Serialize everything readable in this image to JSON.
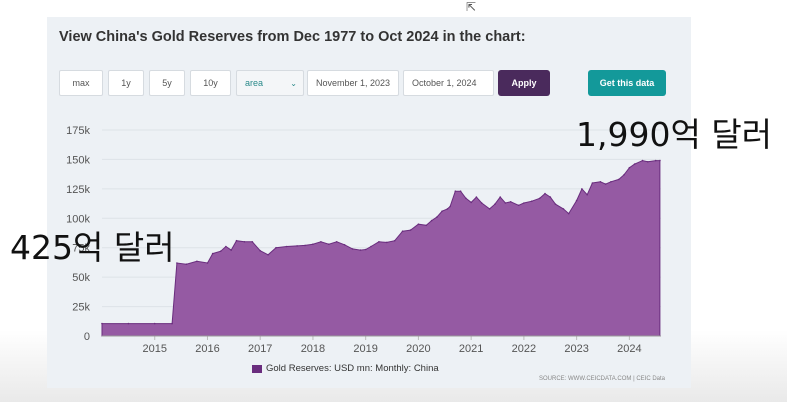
{
  "title": "View China's Gold Reserves from Dec 1977 to Oct 2024 in the chart:",
  "controls": {
    "ranges": [
      "max",
      "1y",
      "5y",
      "10y"
    ],
    "chart_type": "area",
    "start_date": "November 1, 2023",
    "end_date": "October 1, 2024",
    "apply_label": "Apply",
    "get_data_label": "Get this data"
  },
  "overlay": {
    "left_annotation": "425억 달러",
    "right_annotation": "1,990억 달러"
  },
  "source": "SOURCE: WWW.CEICDATA.COM | CEIC Data",
  "colors": {
    "area_fill": "#955aa3",
    "area_stroke": "#6a2d7e",
    "apply": "#4a2a5c",
    "get_data": "#13999a"
  },
  "icons": {
    "dropdown": "chevron-down-icon",
    "cursor": "mouse-pointer-icon"
  },
  "chart_data": {
    "type": "area",
    "series": [
      {
        "name": "Gold Reserves: USD mn: Monthly: China",
        "points": [
          [
            2014.0,
            10500
          ],
          [
            2014.5,
            10500
          ],
          [
            2015.0,
            10500
          ],
          [
            2015.33,
            10500
          ],
          [
            2015.42,
            62000
          ],
          [
            2015.6,
            61000
          ],
          [
            2015.8,
            63500
          ],
          [
            2016.0,
            62000
          ],
          [
            2016.1,
            70000
          ],
          [
            2016.25,
            72000
          ],
          [
            2016.35,
            76000
          ],
          [
            2016.45,
            73000
          ],
          [
            2016.55,
            81000
          ],
          [
            2016.7,
            80000
          ],
          [
            2016.85,
            80000
          ],
          [
            2017.0,
            72500
          ],
          [
            2017.15,
            69000
          ],
          [
            2017.3,
            75000
          ],
          [
            2017.5,
            76000
          ],
          [
            2017.7,
            76500
          ],
          [
            2017.85,
            77000
          ],
          [
            2018.0,
            78000
          ],
          [
            2018.15,
            80000
          ],
          [
            2018.3,
            78000
          ],
          [
            2018.45,
            80000
          ],
          [
            2018.6,
            77500
          ],
          [
            2018.75,
            74000
          ],
          [
            2018.9,
            73000
          ],
          [
            2019.0,
            73500
          ],
          [
            2019.1,
            76000
          ],
          [
            2019.25,
            80000
          ],
          [
            2019.4,
            79500
          ],
          [
            2019.55,
            81000
          ],
          [
            2019.7,
            89000
          ],
          [
            2019.85,
            90000
          ],
          [
            2020.0,
            95000
          ],
          [
            2020.15,
            94000
          ],
          [
            2020.25,
            98000
          ],
          [
            2020.35,
            101000
          ],
          [
            2020.45,
            106000
          ],
          [
            2020.55,
            108000
          ],
          [
            2020.6,
            110000
          ],
          [
            2020.7,
            123000
          ],
          [
            2020.8,
            123000
          ],
          [
            2020.9,
            117000
          ],
          [
            2021.0,
            113500
          ],
          [
            2021.1,
            118000
          ],
          [
            2021.2,
            113000
          ],
          [
            2021.35,
            108000
          ],
          [
            2021.45,
            112000
          ],
          [
            2021.55,
            118000
          ],
          [
            2021.65,
            113000
          ],
          [
            2021.75,
            114000
          ],
          [
            2021.9,
            111000
          ],
          [
            2022.0,
            113000
          ],
          [
            2022.15,
            114500
          ],
          [
            2022.3,
            117000
          ],
          [
            2022.4,
            121000
          ],
          [
            2022.5,
            118000
          ],
          [
            2022.6,
            112000
          ],
          [
            2022.75,
            108000
          ],
          [
            2022.85,
            104000
          ],
          [
            2023.0,
            115000
          ],
          [
            2023.1,
            125000
          ],
          [
            2023.2,
            120000
          ],
          [
            2023.3,
            130000
          ],
          [
            2023.45,
            131000
          ],
          [
            2023.55,
            129000
          ],
          [
            2023.65,
            131000
          ],
          [
            2023.8,
            133000
          ],
          [
            2023.9,
            137000
          ],
          [
            2024.0,
            143000
          ],
          [
            2024.1,
            146000
          ],
          [
            2024.25,
            149000
          ],
          [
            2024.35,
            148000
          ],
          [
            2024.5,
            149000
          ],
          [
            2024.58,
            149000
          ]
        ]
      }
    ],
    "x_ticks": [
      "2015",
      "2016",
      "2017",
      "2018",
      "2019",
      "2020",
      "2021",
      "2022",
      "2023",
      "2024"
    ],
    "y_ticks": [
      "0",
      "25k",
      "50k",
      "75k",
      "100k",
      "125k",
      "150k",
      "175k"
    ],
    "xlim": [
      2014.0,
      2024.6
    ],
    "ylim": [
      0,
      175000
    ],
    "legend_position": "bottom-center",
    "grid": true
  }
}
